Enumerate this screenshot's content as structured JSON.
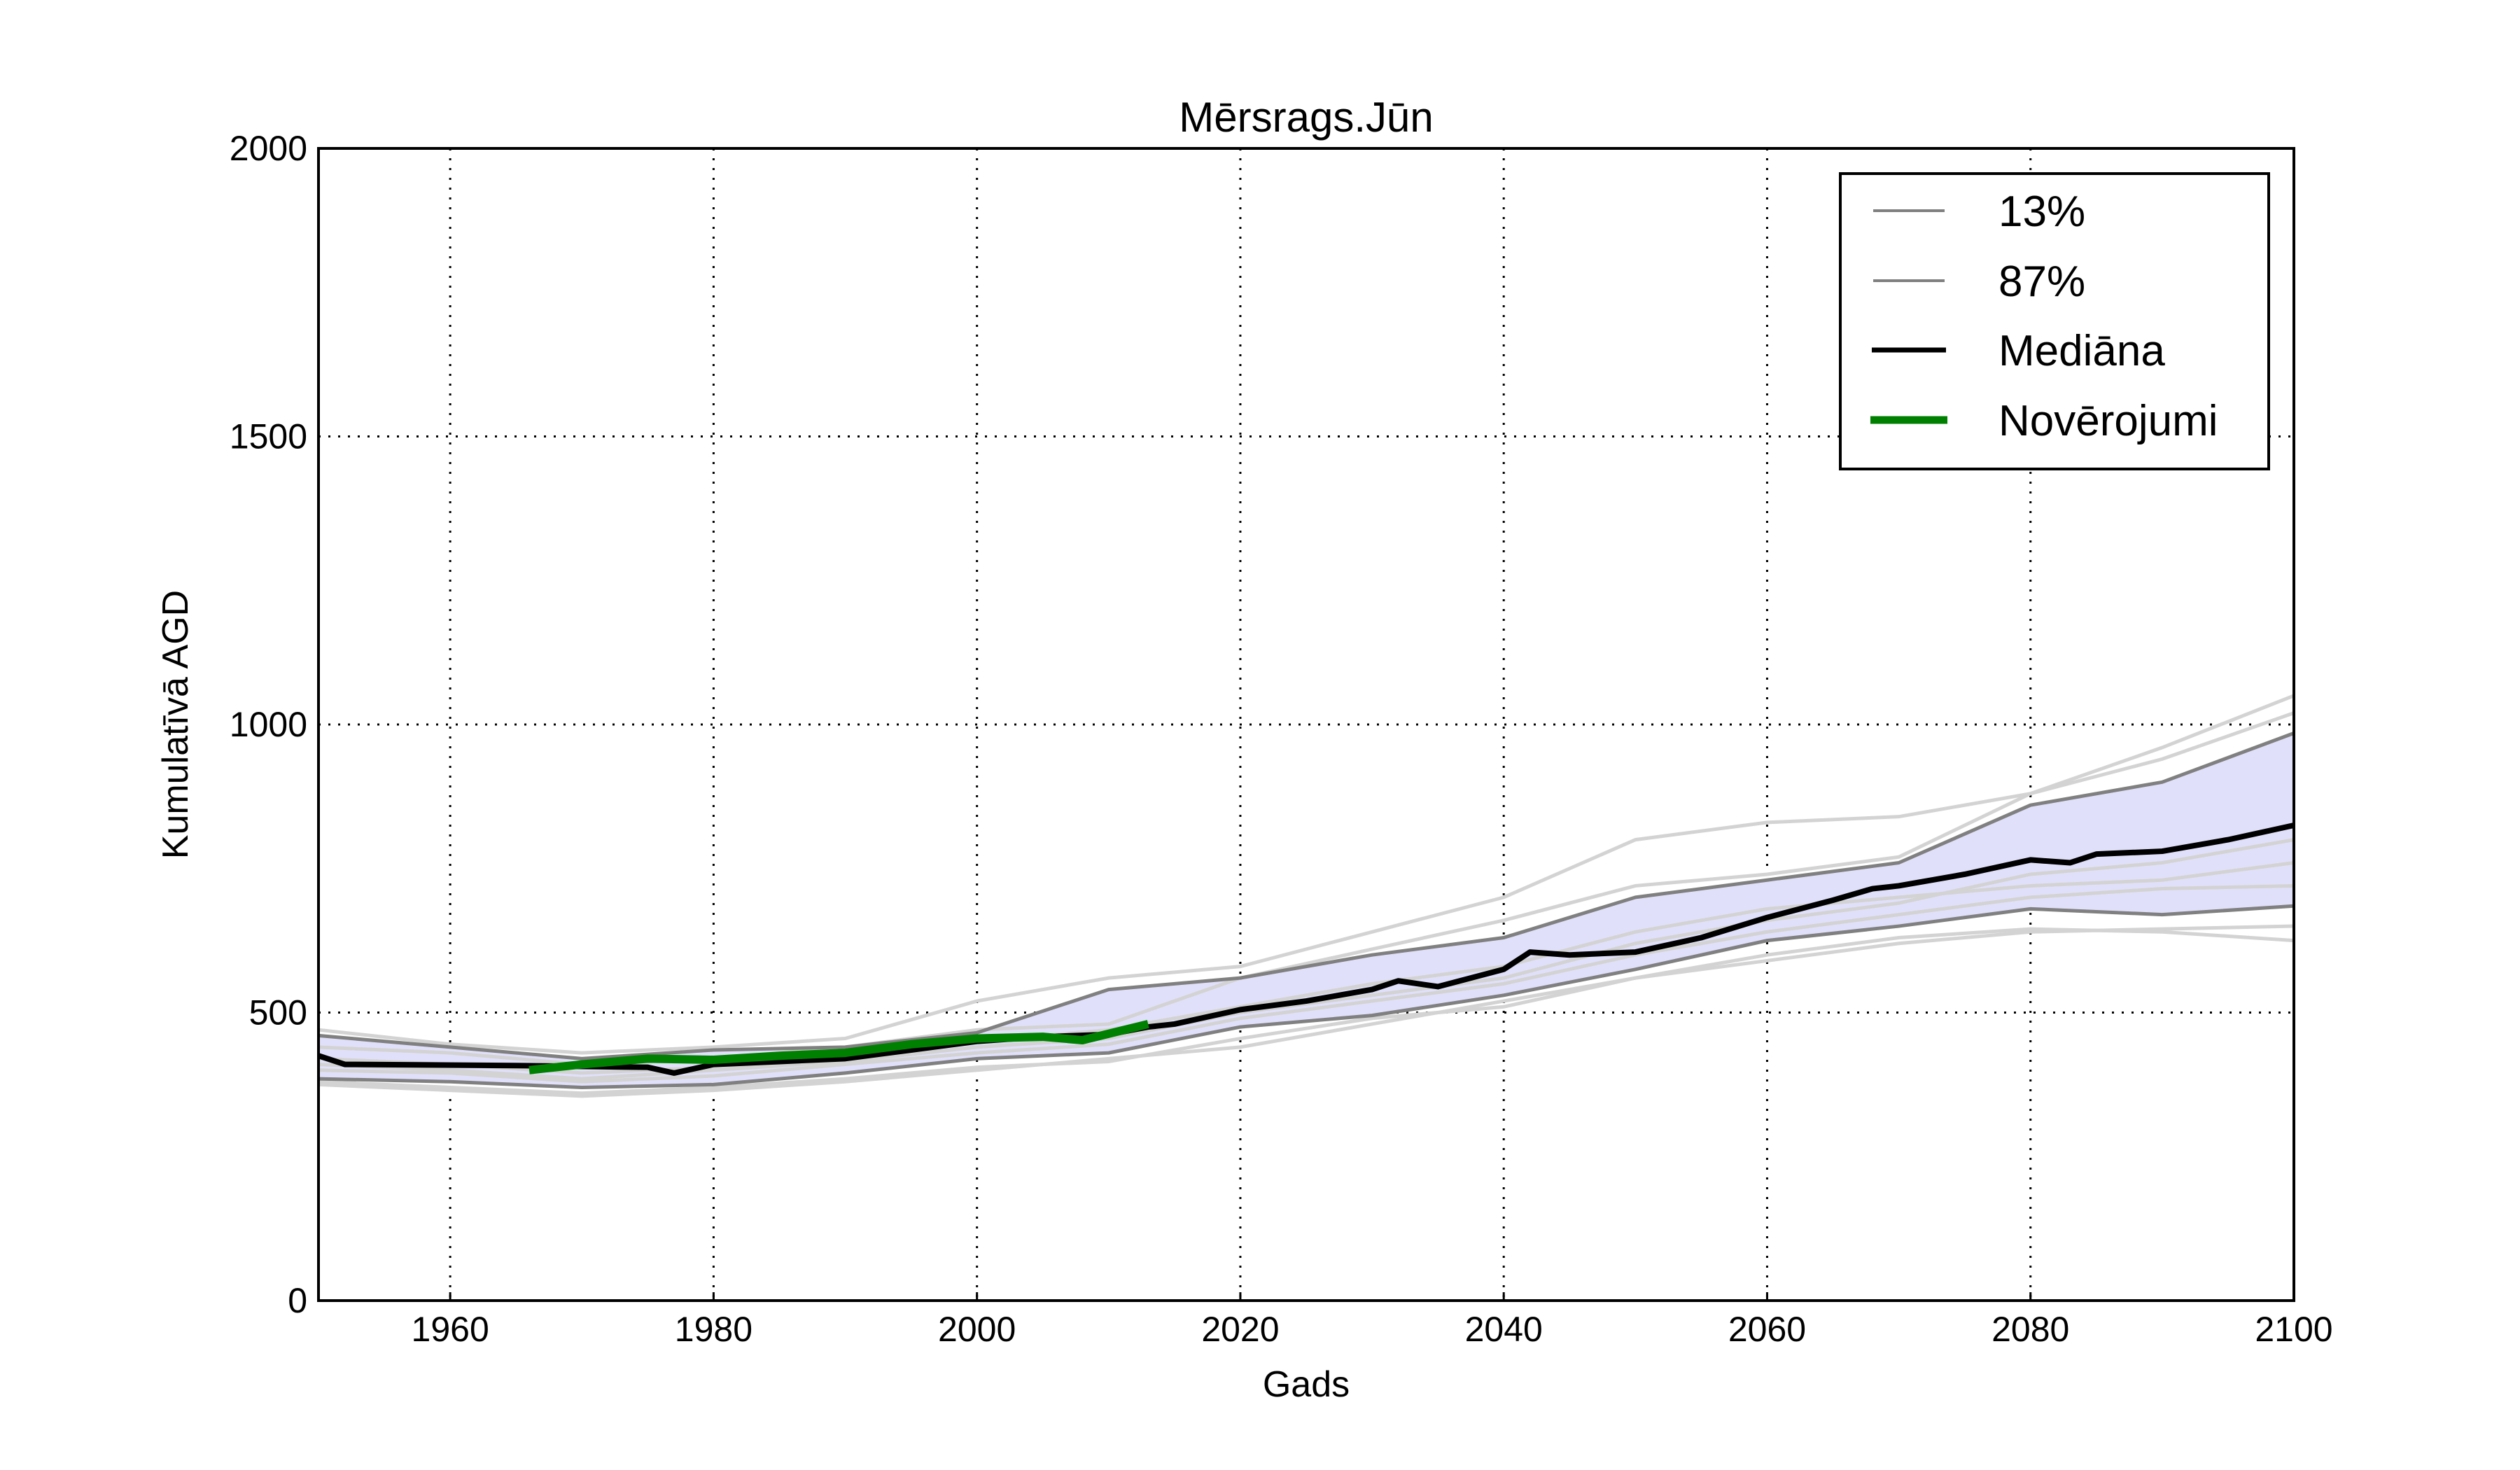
{
  "chart_data": {
    "type": "line",
    "title": "Mērsrags.Jūn",
    "xlabel": "Gads",
    "ylabel": "Kumulatīvā AGD",
    "xlim": [
      1950,
      2100
    ],
    "ylim": [
      0,
      2000
    ],
    "xticks": [
      1960,
      1980,
      2000,
      2020,
      2040,
      2060,
      2080,
      2100
    ],
    "yticks": [
      0,
      500,
      1000,
      1500,
      2000
    ],
    "grid": true,
    "legend_placement": "top-right",
    "band_color": "#e0e0fb",
    "series": [
      {
        "name": "13%",
        "color": "#808080",
        "x": [
          1950,
          1960,
          1970,
          1980,
          1990,
          2000,
          2010,
          2020,
          2030,
          2040,
          2050,
          2060,
          2070,
          2080,
          2090,
          2100
        ],
        "y": [
          385,
          380,
          370,
          375,
          395,
          420,
          430,
          475,
          495,
          530,
          575,
          625,
          650,
          680,
          670,
          685
        ]
      },
      {
        "name": "87%",
        "color": "#808080",
        "x": [
          1950,
          1960,
          1970,
          1980,
          1990,
          2000,
          2010,
          2020,
          2030,
          2040,
          2050,
          2060,
          2070,
          2080,
          2090,
          2100
        ],
        "y": [
          460,
          440,
          420,
          435,
          440,
          465,
          540,
          560,
          600,
          630,
          700,
          730,
          760,
          860,
          900,
          985
        ]
      },
      {
        "name": "Mediāna",
        "color": "#000000",
        "x": [
          1950,
          1952,
          1965,
          1975,
          1977,
          1980,
          1985,
          1990,
          1995,
          2000,
          2005,
          2010,
          2013,
          2015,
          2020,
          2025,
          2030,
          2032,
          2035,
          2040,
          2042,
          2045,
          2050,
          2055,
          2060,
          2065,
          2068,
          2070,
          2075,
          2080,
          2083,
          2085,
          2090,
          2095,
          2100
        ],
        "y": [
          425,
          410,
          408,
          405,
          395,
          410,
          415,
          420,
          435,
          450,
          458,
          462,
          475,
          480,
          505,
          520,
          540,
          555,
          545,
          575,
          605,
          600,
          605,
          630,
          665,
          695,
          715,
          720,
          740,
          765,
          760,
          775,
          780,
          800,
          825
        ]
      },
      {
        "name": "Novērojumi",
        "color": "#008000",
        "x": [
          1966,
          1970,
          1975,
          1980,
          1985,
          1990,
          1995,
          2000,
          2005,
          2008,
          2013
        ],
        "y": [
          400,
          410,
          420,
          418,
          425,
          430,
          445,
          455,
          458,
          452,
          480
        ]
      }
    ],
    "ensemble_members": {
      "color": "#d3d3d3",
      "x": [
        1950,
        1960,
        1970,
        1980,
        1990,
        2000,
        2010,
        2020,
        2030,
        2040,
        2050,
        2060,
        2070,
        2080,
        2090,
        2100
      ],
      "y": [
        [
          470,
          445,
          430,
          440,
          455,
          520,
          560,
          580,
          640,
          700,
          800,
          830,
          840,
          880,
          960,
          1050
        ],
        [
          440,
          430,
          410,
          420,
          440,
          470,
          480,
          560,
          610,
          660,
          720,
          740,
          770,
          880,
          940,
          1020
        ],
        [
          375,
          365,
          355,
          365,
          380,
          400,
          420,
          440,
          480,
          520,
          560,
          600,
          630,
          645,
          640,
          625
        ],
        [
          380,
          370,
          360,
          370,
          385,
          405,
          415,
          455,
          490,
          510,
          560,
          590,
          620,
          640,
          645,
          650
        ],
        [
          420,
          410,
          395,
          405,
          420,
          450,
          470,
          510,
          550,
          580,
          640,
          680,
          700,
          720,
          730,
          760
        ],
        [
          410,
          400,
          385,
          400,
          415,
          440,
          455,
          500,
          530,
          560,
          620,
          660,
          690,
          740,
          760,
          800
        ],
        [
          400,
          395,
          380,
          390,
          410,
          430,
          445,
          490,
          520,
          550,
          600,
          640,
          670,
          700,
          715,
          720
        ]
      ]
    }
  }
}
